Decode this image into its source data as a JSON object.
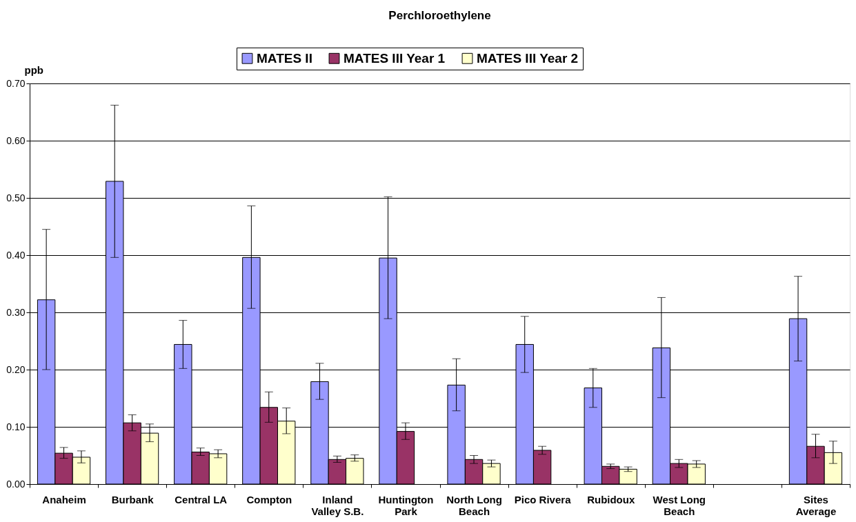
{
  "chart_data": {
    "type": "bar",
    "title": "Perchloroethylene",
    "ylabel": "ppb",
    "categories": [
      "Anaheim",
      "Burbank",
      "Central LA",
      "Compton",
      "Inland\nValley S.B.",
      "Huntington\nPark",
      "North Long\nBeach",
      "Pico Rivera",
      "Rubidoux",
      "West Long\nBeach",
      null,
      "Sites\nAverage"
    ],
    "series": [
      {
        "name": "MATES II",
        "color": "#9999ff",
        "values": [
          0.322,
          0.529,
          0.244,
          0.396,
          0.179,
          0.395,
          0.173,
          0.244,
          0.168,
          0.238,
          null,
          0.289
        ],
        "errors": [
          [
            0.2,
            0.445
          ],
          [
            0.396,
            0.662
          ],
          [
            0.202,
            0.286
          ],
          [
            0.307,
            0.486
          ],
          [
            0.148,
            0.211
          ],
          [
            0.289,
            0.502
          ],
          [
            0.128,
            0.219
          ],
          [
            0.195,
            0.293
          ],
          [
            0.134,
            0.202
          ],
          [
            0.151,
            0.326
          ],
          null,
          [
            0.215,
            0.363
          ]
        ]
      },
      {
        "name": "MATES III Year 1",
        "color": "#993366",
        "values": [
          0.054,
          0.107,
          0.056,
          0.134,
          0.043,
          0.092,
          0.043,
          0.059,
          0.031,
          0.036,
          null,
          0.066
        ],
        "errors": [
          [
            0.045,
            0.064
          ],
          [
            0.093,
            0.121
          ],
          [
            0.05,
            0.063
          ],
          [
            0.108,
            0.161
          ],
          [
            0.038,
            0.049
          ],
          [
            0.078,
            0.107
          ],
          [
            0.036,
            0.05
          ],
          [
            0.052,
            0.066
          ],
          [
            0.027,
            0.035
          ],
          [
            0.029,
            0.043
          ],
          null,
          [
            0.046,
            0.087
          ]
        ]
      },
      {
        "name": "MATES III Year 2",
        "color": "#ffffcc",
        "values": [
          0.047,
          0.089,
          0.053,
          0.11,
          0.045,
          null,
          0.036,
          null,
          0.026,
          0.035,
          null,
          0.055
        ],
        "errors": [
          [
            0.037,
            0.058
          ],
          [
            0.074,
            0.105
          ],
          [
            0.046,
            0.06
          ],
          [
            0.088,
            0.133
          ],
          [
            0.04,
            0.051
          ],
          null,
          [
            0.03,
            0.042
          ],
          null,
          [
            0.022,
            0.03
          ],
          [
            0.029,
            0.041
          ],
          null,
          [
            0.036,
            0.075
          ]
        ]
      }
    ],
    "ylim": [
      0,
      0.7
    ],
    "yticks": [
      {
        "value": 0,
        "label": "0.00"
      },
      {
        "value": 0.1,
        "label": "0.10"
      },
      {
        "value": 0.2,
        "label": "0.20"
      },
      {
        "value": 0.3,
        "label": "0.30"
      },
      {
        "value": 0.4,
        "label": "0.40"
      },
      {
        "value": 0.5,
        "label": "0.50"
      },
      {
        "value": 0.6,
        "label": "0.60"
      },
      {
        "value": 0.7,
        "label": "0.70"
      }
    ],
    "grid": "y",
    "legend": "top"
  }
}
